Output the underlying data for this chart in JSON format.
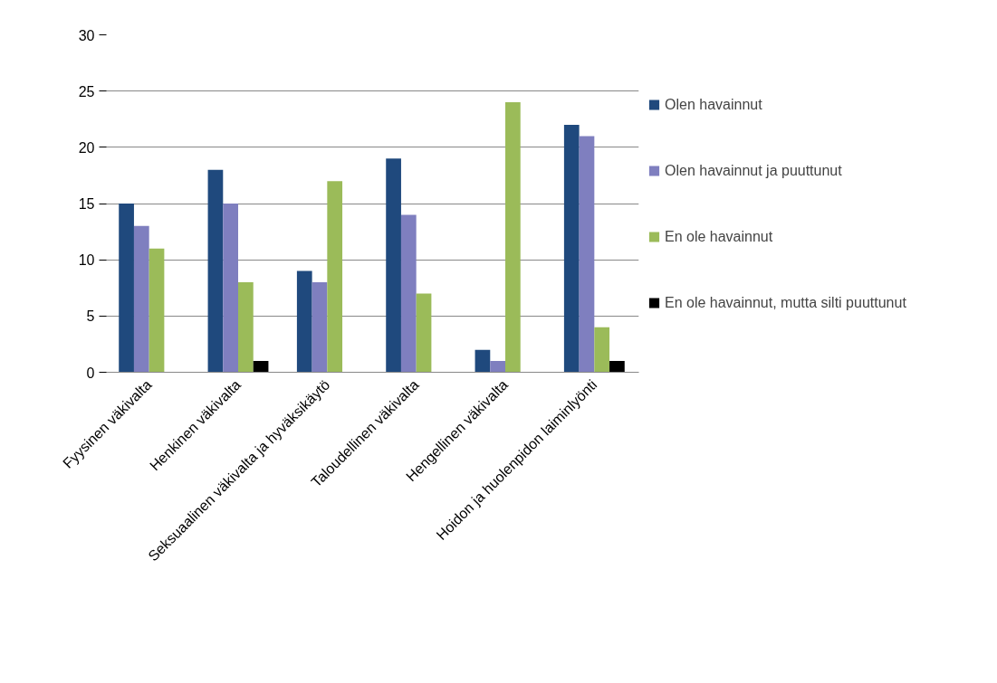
{
  "chart_data": {
    "type": "bar",
    "categories": [
      "Fyysinen väkivalta",
      "Henkinen väkivalta",
      "Seksuaalinen väkivalta ja hyväksikäytö",
      "Taloudellinen väkivalta",
      "Hengellinen väkivalta",
      "Hoidon ja huolenpidon laiminlyönti"
    ],
    "series": [
      {
        "name": "Olen havainnut",
        "color": "#1f497d",
        "values": [
          15,
          18,
          9,
          19,
          2,
          22
        ]
      },
      {
        "name": "Olen havainnut ja puuttunut",
        "color": "#7f7fbf",
        "values": [
          13,
          15,
          8,
          14,
          1,
          21
        ]
      },
      {
        "name": "En ole havainnut",
        "color": "#9bbb59",
        "values": [
          11,
          8,
          17,
          7,
          24,
          4
        ]
      },
      {
        "name": "En ole havainnut, mutta silti puuttunut",
        "color": "#000000",
        "values": [
          0,
          1,
          0,
          0,
          0,
          1
        ]
      }
    ],
    "ylim": [
      0,
      30
    ],
    "yticks": [
      0,
      5,
      10,
      15,
      20,
      25,
      30
    ],
    "grid": "y",
    "legend": "right"
  }
}
